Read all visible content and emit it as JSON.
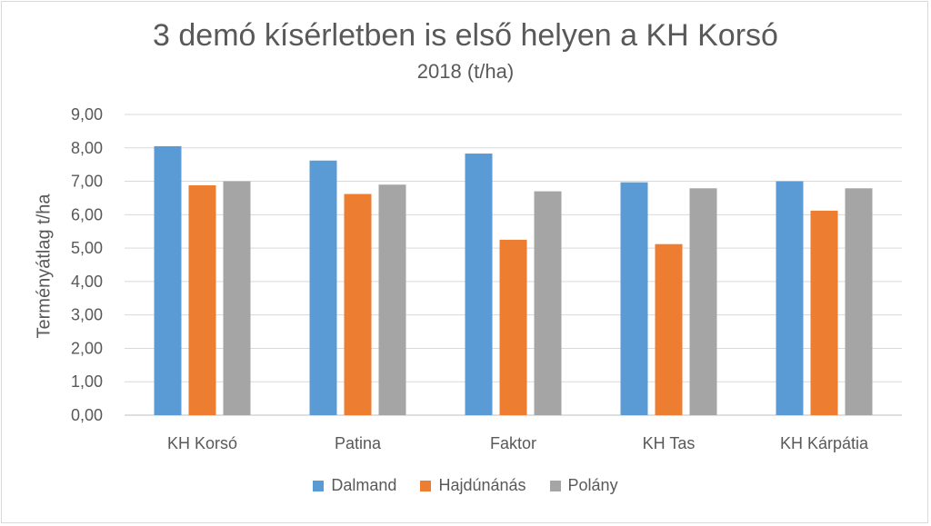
{
  "chart_data": {
    "type": "bar",
    "title": "3 demó kísérletben is első helyen a KH Korsó",
    "subtitle": "2018 (t/ha)",
    "xlabel": "",
    "ylabel": "Terményátlag t/ha",
    "ylim": [
      0,
      9
    ],
    "yticks": [
      "0,00",
      "1,00",
      "2,00",
      "3,00",
      "4,00",
      "5,00",
      "6,00",
      "7,00",
      "8,00",
      "9,00"
    ],
    "grid": true,
    "legend_position": "bottom",
    "categories": [
      "KH Korsó",
      "Patina",
      "Faktor",
      "KH Tas",
      "KH Kárpátia"
    ],
    "series": [
      {
        "name": "Dalmand",
        "color": "#5b9bd5",
        "values": [
          8.05,
          7.62,
          7.83,
          6.97,
          7.0
        ]
      },
      {
        "name": "Hajdúnánás",
        "color": "#ed7d31",
        "values": [
          6.88,
          6.62,
          5.25,
          5.12,
          6.12
        ]
      },
      {
        "name": "Polány",
        "color": "#a5a5a5",
        "values": [
          7.0,
          6.9,
          6.7,
          6.79,
          6.79
        ]
      }
    ]
  }
}
